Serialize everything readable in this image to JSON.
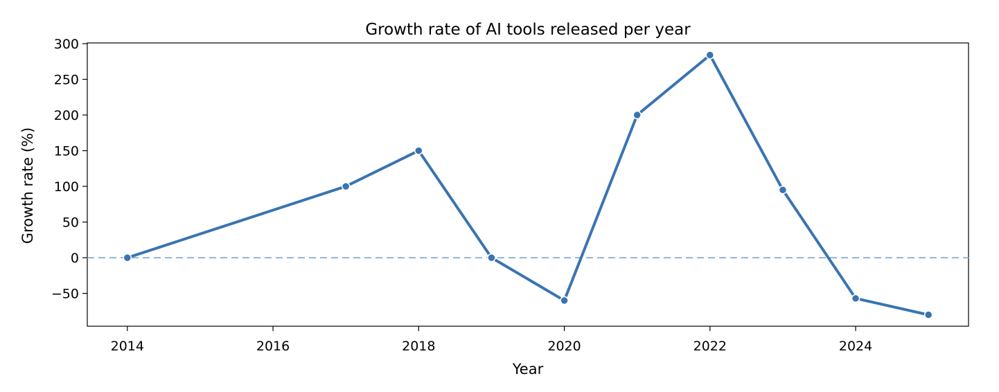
{
  "chart_data": {
    "type": "line",
    "title": "Growth rate of AI tools released per year",
    "xlabel": "Year",
    "ylabel": "Growth rate (%)",
    "x_ticks": [
      2014,
      2016,
      2018,
      2020,
      2022,
      2024
    ],
    "y_ticks": [
      300,
      250,
      200,
      150,
      100,
      50,
      0,
      -50
    ],
    "y_tick_labels": [
      "300",
      "250",
      "200",
      "150",
      "100",
      "50",
      "0",
      "−50"
    ],
    "xlim": [
      2013.45,
      2025.55
    ],
    "ylim": [
      -96,
      301
    ],
    "series": [
      {
        "x": [
          2014,
          2017,
          2018,
          2019,
          2020,
          2021,
          2022,
          2023,
          2024,
          2025
        ],
        "values": [
          0,
          100,
          150,
          0,
          -60,
          200,
          284,
          95,
          -57,
          -80
        ],
        "color": "#3a74b0"
      }
    ],
    "reference_line": {
      "y": 0,
      "style": "dashed",
      "color": "#8fb4d9"
    },
    "grid": false,
    "legend": "none"
  }
}
